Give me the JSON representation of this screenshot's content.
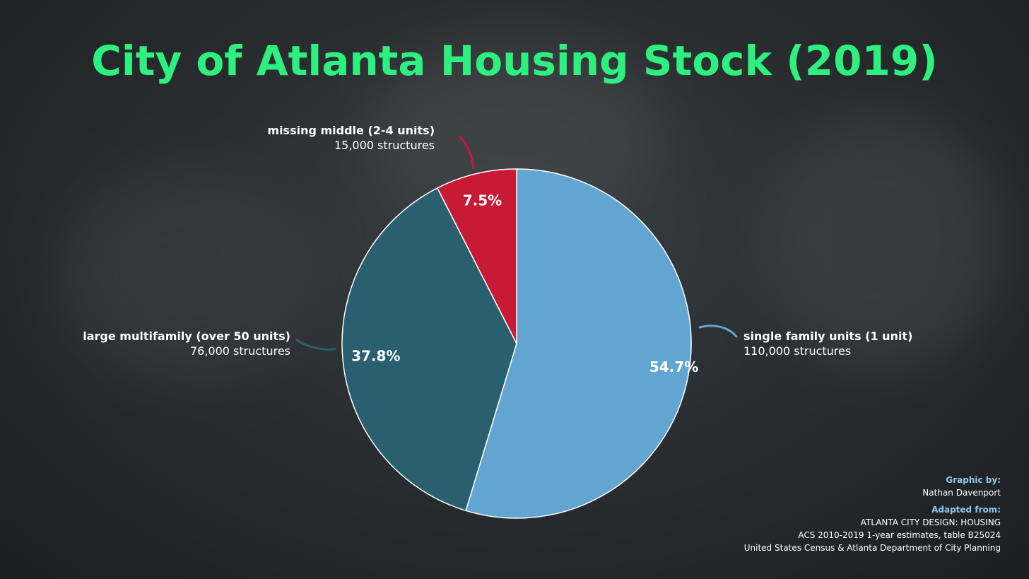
{
  "title": "City of Atlanta Housing Stock (2019)",
  "chart_data": {
    "type": "pie",
    "title": "City of Atlanta Housing Stock (2019)",
    "slices": [
      {
        "label": "single family units (1 unit)",
        "sublabel": "110,000 structures",
        "value": 54.7,
        "pct_label": "54.7%",
        "color": "#62a5d0",
        "line_color": "#62a5d0"
      },
      {
        "label": "large multifamily (over 50 units)",
        "sublabel": "76,000 structures",
        "value": 37.8,
        "pct_label": "37.8%",
        "color": "#295f6f",
        "line_color": "#295f6f"
      },
      {
        "label": "missing middle (2-4 units)",
        "sublabel": "15,000 structures",
        "value": 7.5,
        "pct_label": "7.5%",
        "color": "#c81a34",
        "line_color": "#c81a34"
      }
    ]
  },
  "credits": {
    "graphic_by_label": "Graphic by:",
    "graphic_by": "Nathan Davenport",
    "adapted_from_label": "Adapted from:",
    "sources": [
      "ATLANTA CITY DESIGN: HOUSING",
      "ACS 2010-2019 1-year estimates, table B25024",
      "United States Census & Atlanta Department of City Planning"
    ]
  },
  "colors": {
    "title": "#2ef07f",
    "credit_heading": "#8fc8ec",
    "pie_stroke": "#ffffff"
  }
}
